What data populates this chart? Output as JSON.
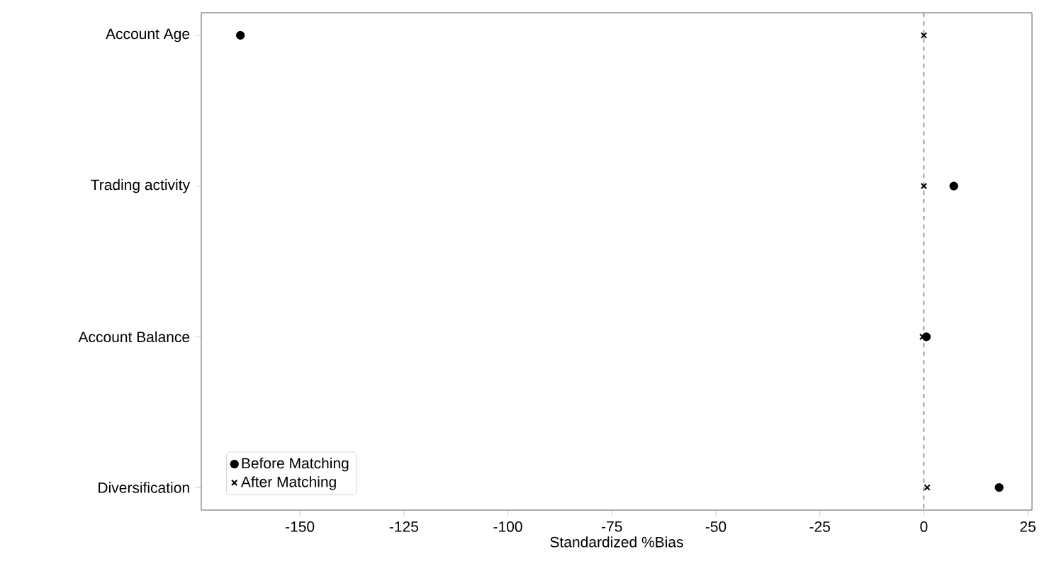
{
  "chart_data": {
    "type": "scatter",
    "xlabel": "Standardized %Bias",
    "categories": [
      "Account Age",
      "Trading activity",
      "Account Balance",
      "Diversification"
    ],
    "orientation": "horizontal",
    "series": [
      {
        "name": "Before Matching",
        "color": "#000000",
        "marker": "circle",
        "values": [
          -164.3,
          7.2,
          0.6,
          18.1
        ]
      },
      {
        "name": "After Matching",
        "color": "#000000",
        "marker": "cross",
        "values": [
          0.0,
          0.0,
          -0.3,
          0.8
        ]
      }
    ],
    "xlim": [
      -173.7,
      26
    ],
    "xticks": [
      -150,
      -125,
      -100,
      -75,
      -50,
      -25,
      0,
      25
    ],
    "ref_lines": [
      {
        "axis": "x",
        "value": 0,
        "color": "#808080",
        "line_style": "dashed"
      }
    ],
    "legend": "bottom left",
    "grid": false
  }
}
